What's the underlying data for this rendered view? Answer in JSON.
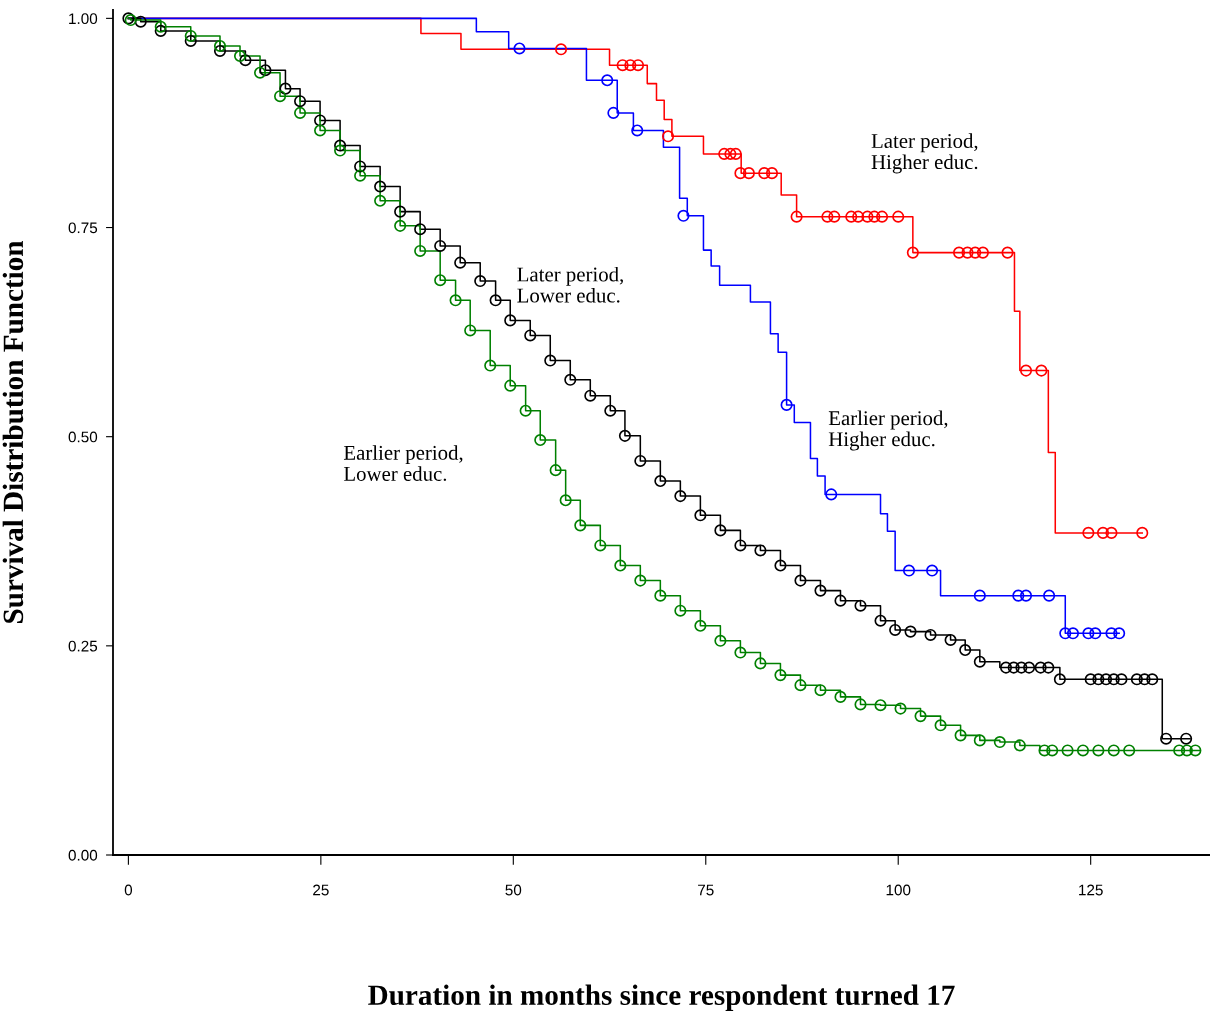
{
  "chart_data": {
    "type": "step",
    "xlabel": "Duration in months since respondent turned 17",
    "ylabel": "Survival Distribution Function",
    "xlim": [
      -2,
      140.5
    ],
    "ylim": [
      0,
      1.01
    ],
    "xticks": [
      0,
      25,
      50,
      75,
      100,
      125
    ],
    "yticks": [
      {
        "value": 0,
        "label": "0.00"
      },
      {
        "value": 0.25,
        "label": "0.25"
      },
      {
        "value": 0.5,
        "label": "0.50"
      },
      {
        "value": 0.75,
        "label": "0.75"
      },
      {
        "value": 1,
        "label": "1.00"
      }
    ],
    "grid": false,
    "annotations": [
      "Later period,\nHigher educ.",
      "Later period,\nLower educ.",
      "Earlier period,\nHigher educ.",
      "Earlier period,\nLower educ."
    ],
    "series": [
      {
        "color": "#ff0000",
        "x": [
          0,
          38.0,
          43.2,
          62.5,
          67.4,
          68.6,
          69.6,
          70.6,
          74.7,
          79.6,
          84.8,
          86.8,
          101.9,
          115.1,
          115.8,
          119.5,
          120.4,
          131.7
        ],
        "values": [
          1.0,
          0.982,
          0.963,
          0.944,
          0.922,
          0.902,
          0.879,
          0.859,
          0.838,
          0.815,
          0.789,
          0.763,
          0.72,
          0.65,
          0.579,
          0.481,
          0.385,
          0.385
        ]
      },
      {
        "color": "#0000ff",
        "x": [
          0,
          45.2,
          49.4,
          59.5,
          63.5,
          65.6,
          69.5,
          71.6,
          72.6,
          74.7,
          75.7,
          76.8,
          80.8,
          83.4,
          84.4,
          85.5,
          86.5,
          88.6,
          89.5,
          90.5,
          97.7,
          98.6,
          99.6,
          105.5,
          121.7,
          128.7
        ],
        "values": [
          1.0,
          0.984,
          0.964,
          0.926,
          0.887,
          0.866,
          0.846,
          0.785,
          0.764,
          0.723,
          0.704,
          0.681,
          0.661,
          0.623,
          0.601,
          0.538,
          0.517,
          0.474,
          0.453,
          0.431,
          0.408,
          0.387,
          0.34,
          0.31,
          0.265,
          0.265
        ]
      },
      {
        "color": "#000000",
        "x": [
          0,
          1.6,
          4.2,
          8.1,
          11.9,
          15.2,
          17.8,
          20.4,
          22.3,
          24.9,
          27.5,
          30.1,
          32.7,
          35.3,
          37.9,
          40.5,
          43.1,
          45.7,
          47.7,
          49.6,
          52.2,
          54.8,
          57.4,
          60.0,
          62.6,
          64.5,
          66.5,
          69.1,
          71.7,
          74.3,
          76.9,
          79.5,
          82.1,
          84.7,
          87.3,
          89.9,
          92.5,
          95.1,
          97.7,
          99.6,
          101.6,
          104.2,
          106.8,
          108.7,
          110.6,
          113.2,
          121.0,
          134.3,
          137.9
        ],
        "values": [
          1.0,
          0.996,
          0.985,
          0.973,
          0.961,
          0.95,
          0.938,
          0.916,
          0.901,
          0.878,
          0.848,
          0.823,
          0.799,
          0.769,
          0.748,
          0.728,
          0.708,
          0.686,
          0.663,
          0.639,
          0.621,
          0.591,
          0.568,
          0.549,
          0.531,
          0.501,
          0.471,
          0.447,
          0.429,
          0.406,
          0.388,
          0.37,
          0.364,
          0.346,
          0.328,
          0.316,
          0.304,
          0.298,
          0.28,
          0.269,
          0.267,
          0.263,
          0.257,
          0.245,
          0.231,
          0.224,
          0.21,
          0.139,
          0.139
        ]
      },
      {
        "color": "#008000",
        "x": [
          0,
          0.3,
          4.2,
          8.1,
          11.9,
          14.5,
          17.1,
          19.7,
          22.3,
          24.9,
          27.5,
          30.1,
          32.7,
          35.3,
          37.9,
          40.5,
          42.5,
          44.4,
          47.0,
          49.6,
          51.6,
          53.5,
          55.5,
          56.8,
          58.7,
          61.3,
          63.9,
          66.5,
          69.1,
          71.7,
          74.3,
          76.9,
          79.5,
          82.1,
          84.7,
          87.3,
          89.9,
          92.5,
          95.1,
          97.7,
          100.3,
          102.9,
          105.5,
          108.1,
          110.6,
          113.2,
          115.8,
          118.4,
          139.2
        ],
        "values": [
          1.0,
          0.998,
          0.99,
          0.979,
          0.967,
          0.955,
          0.935,
          0.907,
          0.887,
          0.866,
          0.842,
          0.812,
          0.782,
          0.752,
          0.722,
          0.687,
          0.663,
          0.627,
          0.585,
          0.561,
          0.531,
          0.496,
          0.46,
          0.424,
          0.394,
          0.37,
          0.346,
          0.328,
          0.31,
          0.292,
          0.274,
          0.256,
          0.242,
          0.229,
          0.215,
          0.203,
          0.197,
          0.189,
          0.18,
          0.179,
          0.175,
          0.166,
          0.155,
          0.143,
          0.137,
          0.135,
          0.131,
          0.125,
          0.125
        ]
      },
      {
        "type": "scatter",
        "marker": "circle",
        "color": "#ff0000",
        "x": [
          56.2,
          64.2,
          65.2,
          66.2,
          70.1,
          77.4,
          78.2,
          78.9,
          79.5,
          80.6,
          82.6,
          83.6,
          86.8,
          90.8,
          91.7,
          93.9,
          94.8,
          96.0,
          96.9,
          97.9,
          100.0,
          101.9,
          107.9,
          109.0,
          110.0,
          111.0,
          114.2,
          116.6,
          118.6,
          124.7,
          126.6,
          127.7,
          131.7
        ],
        "values": [
          0.963,
          0.944,
          0.944,
          0.944,
          0.859,
          0.838,
          0.838,
          0.838,
          0.815,
          0.815,
          0.815,
          0.815,
          0.763,
          0.763,
          0.763,
          0.763,
          0.763,
          0.763,
          0.763,
          0.763,
          0.763,
          0.72,
          0.72,
          0.72,
          0.72,
          0.72,
          0.72,
          0.579,
          0.579,
          0.385,
          0.385,
          0.385,
          0.385
        ]
      },
      {
        "type": "scatter",
        "marker": "circle",
        "color": "#0000ff",
        "x": [
          50.8,
          62.2,
          63.0,
          66.1,
          72.1,
          85.5,
          91.3,
          101.4,
          104.4,
          110.6,
          115.6,
          116.6,
          119.6,
          121.7,
          122.7,
          124.7,
          125.6,
          127.7,
          128.7
        ],
        "values": [
          0.964,
          0.926,
          0.887,
          0.866,
          0.764,
          0.538,
          0.431,
          0.34,
          0.34,
          0.31,
          0.31,
          0.31,
          0.31,
          0.265,
          0.265,
          0.265,
          0.265,
          0.265,
          0.265
        ]
      },
      {
        "type": "scatter",
        "marker": "circle",
        "color": "#000000",
        "x": [
          0,
          1.6,
          4.2,
          8.1,
          11.9,
          15.2,
          17.8,
          20.4,
          22.3,
          24.9,
          27.5,
          30.1,
          32.7,
          35.3,
          37.9,
          40.5,
          43.1,
          45.7,
          47.7,
          49.6,
          52.2,
          54.8,
          57.4,
          60.0,
          62.6,
          64.5,
          66.5,
          69.1,
          71.7,
          74.3,
          76.9,
          79.5,
          82.1,
          84.7,
          87.3,
          89.9,
          92.5,
          95.1,
          97.7,
          99.6,
          101.6,
          104.2,
          106.8,
          108.7,
          110.6,
          114.0,
          115.0,
          116.0,
          117.0,
          118.5,
          119.5,
          121.0,
          125.0,
          126.0,
          127.0,
          128.0,
          129.0,
          131.0,
          132.0,
          133.0,
          134.8,
          137.4
        ],
        "values": [
          1.0,
          0.996,
          0.985,
          0.973,
          0.961,
          0.95,
          0.938,
          0.916,
          0.901,
          0.878,
          0.848,
          0.823,
          0.799,
          0.769,
          0.748,
          0.728,
          0.708,
          0.686,
          0.663,
          0.639,
          0.621,
          0.591,
          0.568,
          0.549,
          0.531,
          0.501,
          0.471,
          0.447,
          0.429,
          0.406,
          0.388,
          0.37,
          0.364,
          0.346,
          0.328,
          0.316,
          0.304,
          0.298,
          0.28,
          0.269,
          0.267,
          0.263,
          0.257,
          0.245,
          0.231,
          0.224,
          0.224,
          0.224,
          0.224,
          0.224,
          0.224,
          0.21,
          0.21,
          0.21,
          0.21,
          0.21,
          0.21,
          0.21,
          0.21,
          0.21,
          0.139,
          0.139
        ]
      },
      {
        "type": "scatter",
        "marker": "circle",
        "color": "#008000",
        "x": [
          0.3,
          4.2,
          8.1,
          11.9,
          14.5,
          17.1,
          19.7,
          22.3,
          24.9,
          27.5,
          30.1,
          32.7,
          35.3,
          37.9,
          40.5,
          42.5,
          44.4,
          47.0,
          49.6,
          51.6,
          53.5,
          55.5,
          56.8,
          58.7,
          61.3,
          63.9,
          66.5,
          69.1,
          71.7,
          74.3,
          76.9,
          79.5,
          82.1,
          84.7,
          87.3,
          89.9,
          92.5,
          95.1,
          97.7,
          100.3,
          102.9,
          105.5,
          108.1,
          110.6,
          113.2,
          115.8,
          119.0,
          120.0,
          122.0,
          124.0,
          126.0,
          128.0,
          130.0,
          136.5,
          137.5,
          138.6
        ],
        "values": [
          0.998,
          0.99,
          0.979,
          0.967,
          0.955,
          0.935,
          0.907,
          0.887,
          0.866,
          0.842,
          0.812,
          0.782,
          0.752,
          0.722,
          0.687,
          0.663,
          0.627,
          0.585,
          0.561,
          0.531,
          0.496,
          0.46,
          0.424,
          0.394,
          0.37,
          0.346,
          0.328,
          0.31,
          0.292,
          0.274,
          0.256,
          0.242,
          0.229,
          0.215,
          0.203,
          0.197,
          0.189,
          0.18,
          0.179,
          0.175,
          0.166,
          0.155,
          0.143,
          0.137,
          0.135,
          0.131,
          0.125,
          0.125,
          0.125,
          0.125,
          0.125,
          0.125,
          0.125,
          0.125,
          0.125,
          0.125
        ]
      }
    ]
  }
}
